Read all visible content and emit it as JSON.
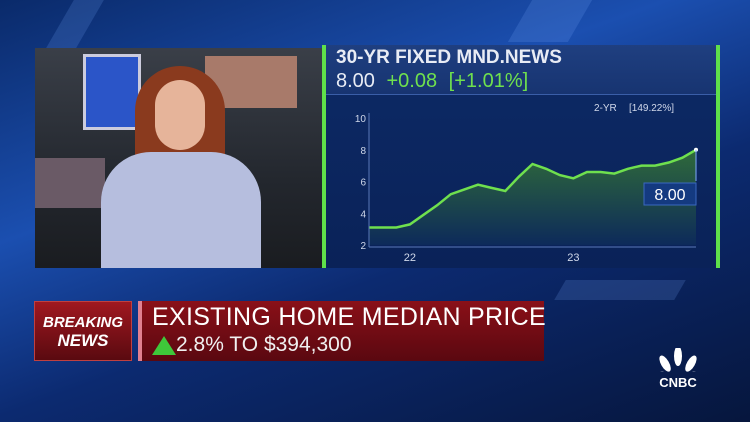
{
  "panel": {
    "title": "30-YR FIXED MND.NEWS",
    "value": "8.00",
    "change": "+0.08",
    "change_pct": "[+1.01%]",
    "range_label": "2-YR",
    "range_change": "[149.22%]",
    "last_label": "8.00"
  },
  "lower_third": {
    "badge_top": "BREAKING",
    "badge_bottom": "NEWS",
    "headline": "EXISTING HOME MEDIAN PRICE",
    "subline": "2.8% TO $394,300",
    "arrow": "up-triangle-icon"
  },
  "logo": "CNBC",
  "colors": {
    "line": "#6fe04e",
    "accent_green": "#5fe04a",
    "banner_red": "#8a1018"
  },
  "chart_data": {
    "type": "area",
    "title": "30-YR FIXED MND.NEWS",
    "ylim": [
      2,
      10
    ],
    "yticks": [
      "2",
      "4",
      "6",
      "8",
      "10"
    ],
    "xticks": [
      "22",
      "23"
    ],
    "grid": false,
    "x": [
      "2021-10",
      "2021-11",
      "2021-12",
      "2022-01",
      "2022-02",
      "2022-03",
      "2022-04",
      "2022-05",
      "2022-06",
      "2022-07",
      "2022-08",
      "2022-09",
      "2022-10",
      "2022-11",
      "2022-12",
      "2023-01",
      "2023-02",
      "2023-03",
      "2023-04",
      "2023-05",
      "2023-06",
      "2023-07",
      "2023-08",
      "2023-09",
      "2023-10"
    ],
    "values": [
      3.1,
      3.1,
      3.1,
      3.3,
      3.9,
      4.5,
      5.2,
      5.5,
      5.8,
      5.6,
      5.4,
      6.3,
      7.1,
      6.8,
      6.4,
      6.2,
      6.6,
      6.6,
      6.5,
      6.8,
      7.0,
      7.0,
      7.2,
      7.5,
      8.0
    ]
  }
}
